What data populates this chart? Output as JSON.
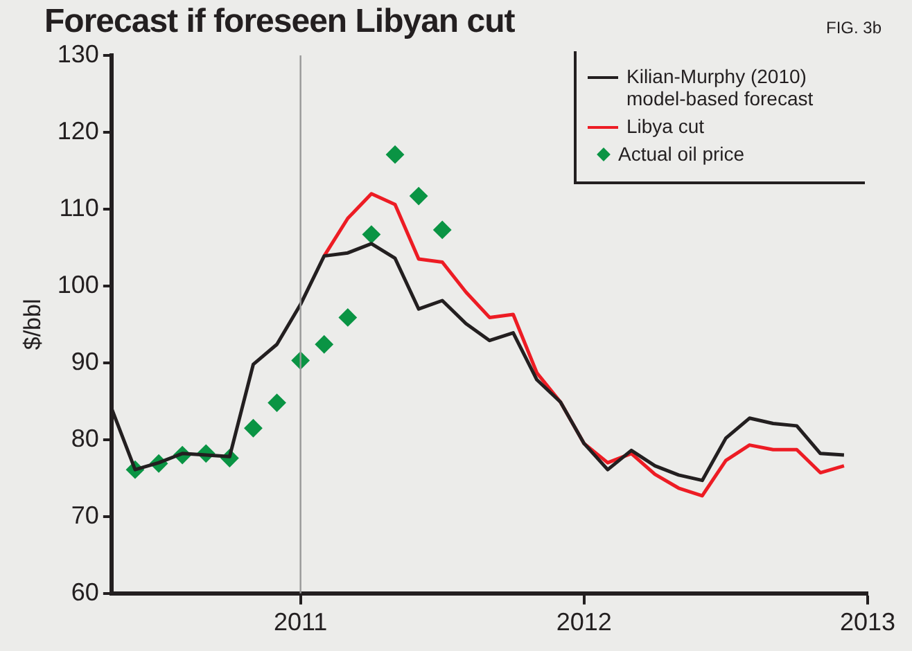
{
  "chart_data": {
    "type": "line",
    "title": "Forecast if foreseen Libyan cut",
    "annotations": [
      "FIG. 3b"
    ],
    "ylabel": "$/bbl",
    "x": [
      "2010-05",
      "2010-06",
      "2010-07",
      "2010-08",
      "2010-09",
      "2010-10",
      "2010-11",
      "2010-12",
      "2011-01",
      "2011-02",
      "2011-03",
      "2011-04",
      "2011-05",
      "2011-06",
      "2011-07",
      "2011-08",
      "2011-09",
      "2011-10",
      "2011-11",
      "2011-12",
      "2012-01",
      "2012-02",
      "2012-03",
      "2012-04",
      "2012-05",
      "2012-06",
      "2012-07",
      "2012-08",
      "2012-09",
      "2012-10",
      "2012-11",
      "2012-12"
    ],
    "xlim": [
      "2010-05",
      "2013-01"
    ],
    "xticks": [
      {
        "value": "2011",
        "label": "2011"
      },
      {
        "value": "2012",
        "label": "2012"
      },
      {
        "value": "2013",
        "label": "2013"
      }
    ],
    "ylim": [
      60,
      130
    ],
    "yticks": [
      60,
      70,
      80,
      90,
      100,
      110,
      120,
      130
    ],
    "grid": false,
    "legend": "top right",
    "marker": "none",
    "line_style": "solid",
    "ref_lines": [
      {
        "axis": "x",
        "value": "2011",
        "color": "#999999"
      }
    ],
    "series": [
      {
        "name": "Kilian-Murphy (2010) model-based forecast",
        "color": "#231f20",
        "values": [
          84.1,
          76.1,
          77.0,
          78.2,
          78.0,
          77.8,
          89.8,
          92.4,
          97.6,
          103.9,
          104.3,
          105.5,
          103.6,
          97.0,
          98.1,
          95.1,
          92.9,
          93.9,
          87.8,
          84.9,
          79.5,
          76.1,
          78.6,
          76.6,
          75.4,
          74.7,
          80.2,
          82.8,
          82.1,
          81.8,
          78.2,
          78.0
        ]
      },
      {
        "name": "Libya cut",
        "color": "#ed1c24",
        "values": [
          null,
          null,
          null,
          null,
          null,
          null,
          null,
          null,
          null,
          103.9,
          108.8,
          112.0,
          110.6,
          103.5,
          103.1,
          99.2,
          95.9,
          96.3,
          88.7,
          84.9,
          79.5,
          77.0,
          78.2,
          75.5,
          73.7,
          72.7,
          77.3,
          79.3,
          78.7,
          78.7,
          75.7,
          76.6
        ]
      },
      {
        "name": "Actual oil price",
        "type": "scatter",
        "marker": "diamond",
        "color": "#0a9444",
        "values": [
          null,
          76.1,
          76.9,
          78.0,
          78.2,
          77.6,
          81.5,
          84.8,
          90.3,
          92.4,
          95.9,
          106.7,
          117.1,
          111.7,
          107.3,
          null,
          null,
          null,
          null,
          null,
          null,
          null,
          null,
          null,
          null,
          null,
          null,
          null,
          null,
          null,
          null,
          null
        ]
      }
    ]
  }
}
